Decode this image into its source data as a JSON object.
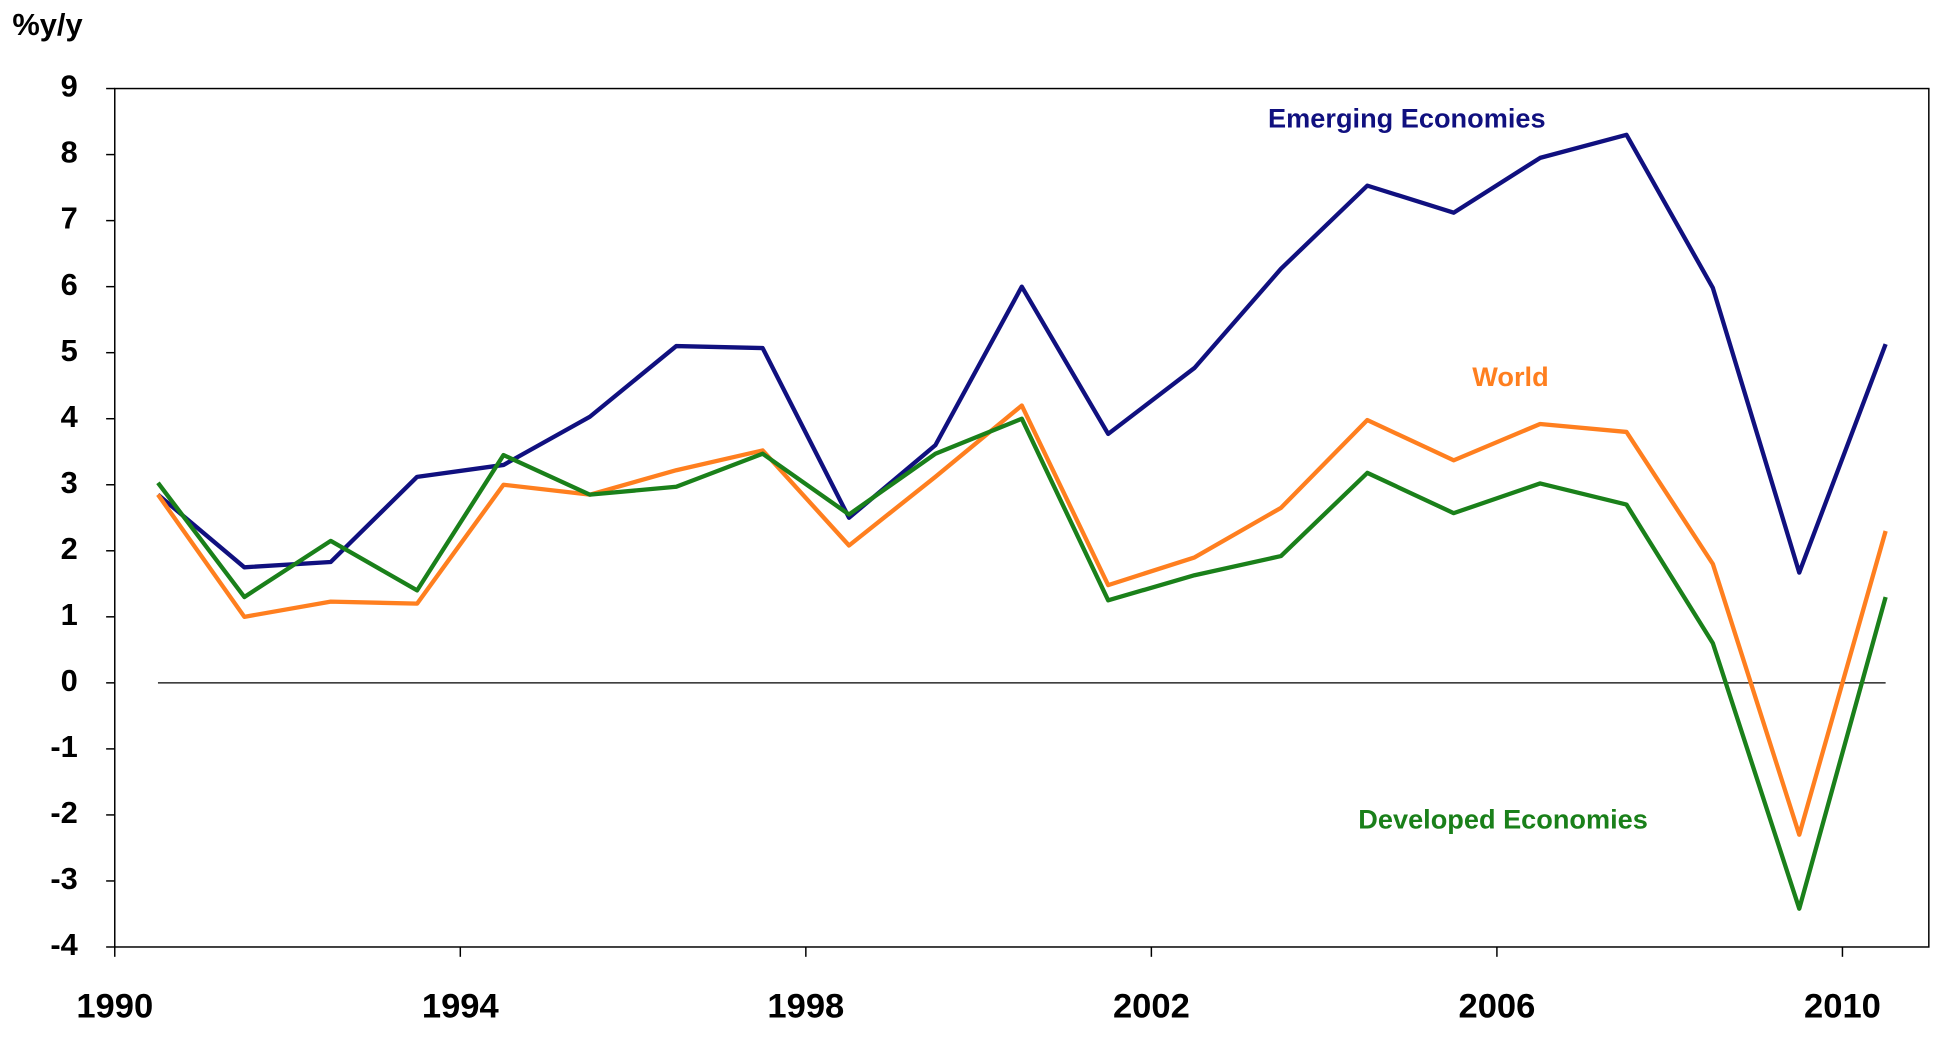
{
  "chart_data": {
    "type": "line",
    "y_axis_label": "%y/y",
    "x": [
      1990.5,
      1991.5,
      1992.5,
      1993.5,
      1994.5,
      1995.5,
      1996.5,
      1997.5,
      1998.5,
      1999.5,
      2000.5,
      2001.5,
      2002.5,
      2003.5,
      2004.5,
      2005.5,
      2006.5,
      2007.5,
      2008.5,
      2009.5,
      2010.5
    ],
    "xlim": [
      1990,
      2011
    ],
    "xticks": [
      1990,
      1994,
      1998,
      2002,
      2006,
      2010
    ],
    "ylim": [
      -4,
      9
    ],
    "yticks": [
      -4,
      -3,
      -2,
      -1,
      0,
      1,
      2,
      3,
      4,
      5,
      6,
      7,
      8,
      9
    ],
    "series": [
      {
        "name": "Emerging Economies",
        "color": "#10107f",
        "values": [
          2.85,
          1.75,
          1.83,
          3.12,
          3.3,
          4.03,
          5.1,
          5.07,
          2.5,
          3.6,
          6.0,
          3.77,
          4.77,
          6.27,
          7.53,
          7.12,
          7.95,
          8.3,
          5.98,
          1.67,
          5.13
        ]
      },
      {
        "name": "World",
        "color": "#ff7f1f",
        "values": [
          2.85,
          1.0,
          1.23,
          1.2,
          3.0,
          2.85,
          3.22,
          3.52,
          2.08,
          3.12,
          4.2,
          1.48,
          1.9,
          2.65,
          3.98,
          3.37,
          3.92,
          3.8,
          1.8,
          -2.3,
          2.3
        ]
      },
      {
        "name": "Developed Economies",
        "color": "#1a801a",
        "values": [
          3.03,
          1.3,
          2.15,
          1.4,
          3.45,
          2.85,
          2.97,
          3.47,
          2.55,
          3.47,
          4.0,
          1.25,
          1.63,
          1.92,
          3.18,
          2.57,
          3.02,
          2.7,
          0.6,
          -3.42,
          1.3
        ]
      }
    ]
  }
}
